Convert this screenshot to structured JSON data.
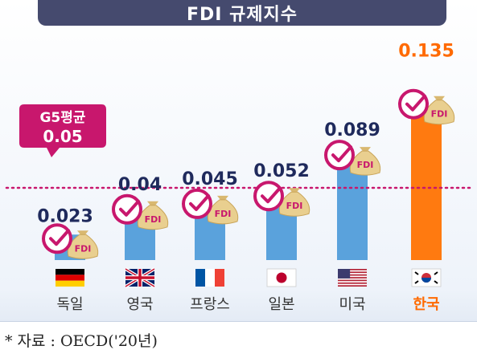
{
  "chart_data": {
    "type": "bar",
    "title": "FDI 규제지수",
    "categories": [
      "독일",
      "영국",
      "프랑스",
      "일본",
      "미국",
      "한국"
    ],
    "values": [
      0.023,
      0.04,
      0.045,
      0.052,
      0.089,
      0.135
    ],
    "value_labels": [
      "0.023",
      "0.04",
      "0.045",
      "0.052",
      "0.089",
      "0.135"
    ],
    "flags": [
      "germany-flag-icon",
      "uk-flag-icon",
      "france-flag-icon",
      "japan-flag-icon",
      "usa-flag-icon",
      "korea-flag-icon"
    ],
    "highlight_category": "한국",
    "reference_line": {
      "label_lines": [
        "G5평균",
        "0.05"
      ],
      "value": 0.05
    },
    "badge_text": "FDI",
    "colors": {
      "bar": "#5aa2dc",
      "highlight_bar": "#ff7a10",
      "highlight_text": "#ff6a00",
      "value_text": "#1f2a5c",
      "reference": "#c8176d",
      "title_bg": "#454a6e"
    }
  },
  "footer": {
    "source": "* 자료 : OECD('20년)"
  }
}
